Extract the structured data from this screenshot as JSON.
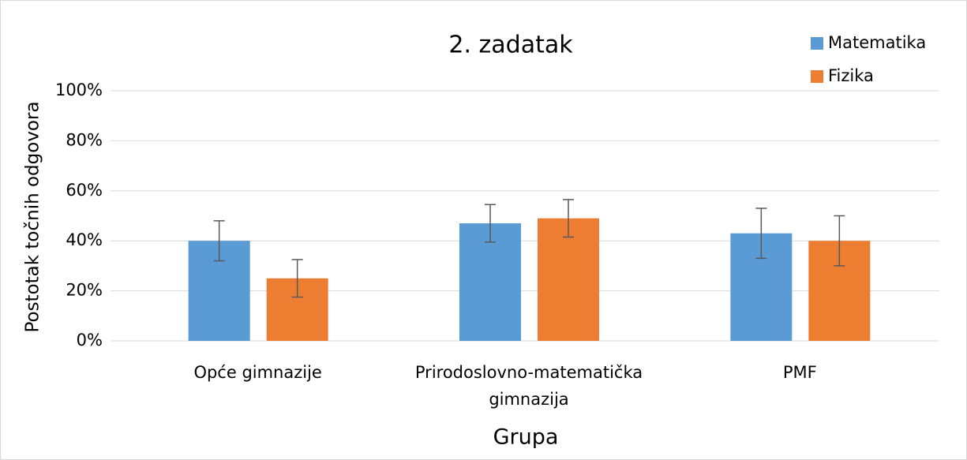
{
  "chart_data": {
    "type": "bar",
    "title": "2. zadatak",
    "xlabel": "Grupa",
    "ylabel": "Postotak točnih odgovora",
    "categories": [
      "Opće gimnazije",
      "Prirodoslovno-matematička gimnazija",
      "PMF"
    ],
    "series": [
      {
        "name": "Matematika",
        "color": "#5b9bd5",
        "values": [
          40,
          47,
          43
        ],
        "errors": [
          8,
          7.5,
          10
        ]
      },
      {
        "name": "Fizika",
        "color": "#ed7d31",
        "values": [
          25,
          49,
          40
        ],
        "errors": [
          7.5,
          7.5,
          10
        ]
      }
    ],
    "ylim": [
      0,
      100
    ],
    "yticks": [
      {
        "value": 0,
        "label": "0%"
      },
      {
        "value": 20,
        "label": "20%"
      },
      {
        "value": 40,
        "label": "40%"
      },
      {
        "value": 60,
        "label": "60%"
      },
      {
        "value": 80,
        "label": "80%"
      },
      {
        "value": 100,
        "label": "100%"
      }
    ],
    "grid": true,
    "legend": "top-right",
    "error_color": "#595959"
  }
}
